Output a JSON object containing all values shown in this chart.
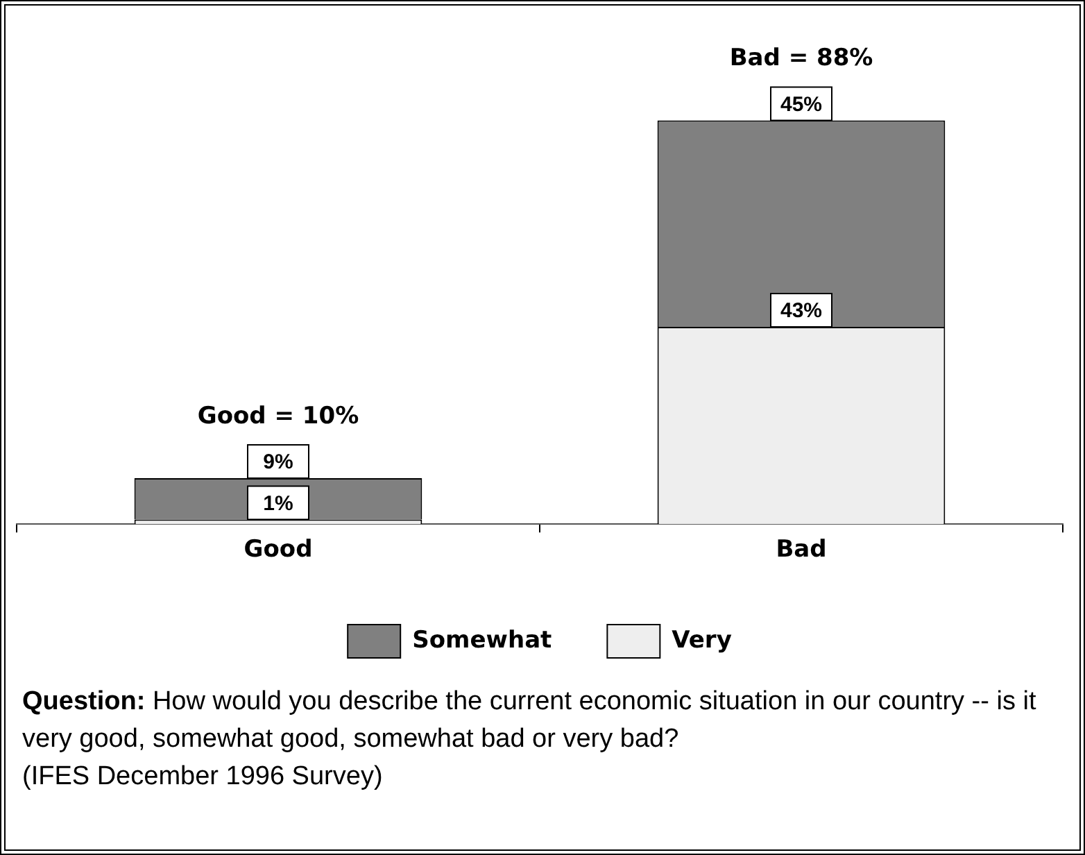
{
  "chart_data": {
    "type": "bar",
    "stacked": true,
    "categories": [
      "Good",
      "Bad"
    ],
    "series": [
      {
        "name": "Very",
        "color": "#eeeeee",
        "values": [
          1,
          43
        ],
        "value_labels": [
          "1%",
          "43%"
        ]
      },
      {
        "name": "Somewhat",
        "color": "#808080",
        "values": [
          9,
          45
        ],
        "value_labels": [
          "9%",
          "45%"
        ]
      }
    ],
    "totals": [
      "Good = 10%",
      "Bad = 88%"
    ],
    "legend": "bottom",
    "grid": false,
    "annotations": [
      "Question: How would you describe the current economic situation in our country -- is it very good, somewhat good, somewhat bad or very bad?",
      "(IFES December 1996 Survey)"
    ]
  }
}
